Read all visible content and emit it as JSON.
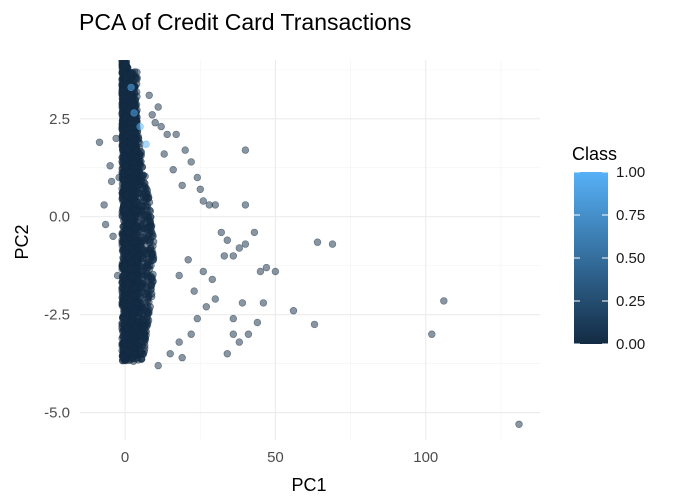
{
  "chart_data": {
    "type": "scatter",
    "title": "PCA of Credit Card Transactions",
    "xlabel": "PC1",
    "ylabel": "PC2",
    "xlim": [
      -15,
      138
    ],
    "ylim": [
      -5.7,
      4.0
    ],
    "x_ticks": [
      0,
      50,
      100
    ],
    "y_ticks": [
      -5.0,
      -2.5,
      0.0,
      2.5
    ],
    "x_tick_labels": [
      "0",
      "50",
      "100"
    ],
    "y_tick_labels": [
      "-5.0",
      "-2.5",
      "0.0",
      "2.5"
    ],
    "x_minor_ticks": [
      -25,
      25,
      75,
      125
    ],
    "y_minor_ticks": [
      -3.75,
      -1.25,
      1.25,
      3.75
    ],
    "grid": true,
    "theme": "minimal",
    "legend": {
      "title": "Class",
      "placement": "right",
      "type": "colorbar",
      "range": [
        0,
        1
      ],
      "breaks": [
        "1.00",
        "0.75",
        "0.50",
        "0.25",
        "0.00"
      ],
      "break_values": [
        1.0,
        0.75,
        0.5,
        0.25,
        0.0
      ],
      "low_color": "#132B43",
      "high_color": "#56B1F7"
    },
    "point_opacity": 0.5,
    "dense_cluster": {
      "note_free": true,
      "x_range": [
        0,
        8
      ],
      "y_range": [
        -3.7,
        4.0
      ],
      "class": 0
    },
    "points": [
      {
        "x": -8.5,
        "y": 1.9,
        "class": 0
      },
      {
        "x": -7,
        "y": 0.3,
        "class": 0
      },
      {
        "x": -6.5,
        "y": -0.2,
        "class": 0
      },
      {
        "x": -5,
        "y": 1.3,
        "class": 0
      },
      {
        "x": -4.5,
        "y": 0.9,
        "class": 0
      },
      {
        "x": -4,
        "y": -0.5,
        "class": 0
      },
      {
        "x": -3,
        "y": 2.0,
        "class": 0
      },
      {
        "x": -2.5,
        "y": -1.5,
        "class": 0
      },
      {
        "x": -2,
        "y": 1.0,
        "class": 0
      },
      {
        "x": 8,
        "y": 3.1,
        "class": 0
      },
      {
        "x": 10,
        "y": 2.4,
        "class": 0
      },
      {
        "x": 12,
        "y": 2.3,
        "class": 0
      },
      {
        "x": 14,
        "y": 2.1,
        "class": 0
      },
      {
        "x": 17,
        "y": 2.1,
        "class": 0
      },
      {
        "x": 20,
        "y": 1.7,
        "class": 0
      },
      {
        "x": 22,
        "y": 1.4,
        "class": 0
      },
      {
        "x": 24,
        "y": 1.0,
        "class": 0
      },
      {
        "x": 25,
        "y": 0.7,
        "class": 0
      },
      {
        "x": 26,
        "y": 0.4,
        "class": 0
      },
      {
        "x": 28,
        "y": 0.3,
        "class": 0
      },
      {
        "x": 30,
        "y": 0.3,
        "class": 0
      },
      {
        "x": 32,
        "y": -0.4,
        "class": 0
      },
      {
        "x": 33,
        "y": -1.0,
        "class": 0
      },
      {
        "x": 34,
        "y": -0.6,
        "class": 0
      },
      {
        "x": 36,
        "y": -1.0,
        "class": 0
      },
      {
        "x": 38,
        "y": -0.8,
        "class": 0
      },
      {
        "x": 40,
        "y": 1.7,
        "class": 0
      },
      {
        "x": 40,
        "y": -0.7,
        "class": 0
      },
      {
        "x": 40,
        "y": 0.3,
        "class": 0
      },
      {
        "x": 43,
        "y": -0.4,
        "class": 0
      },
      {
        "x": 45,
        "y": -1.4,
        "class": 0
      },
      {
        "x": 47,
        "y": -1.3,
        "class": 0
      },
      {
        "x": 50,
        "y": -1.4,
        "class": 0
      },
      {
        "x": 64,
        "y": -0.65,
        "class": 0
      },
      {
        "x": 69,
        "y": -0.7,
        "class": 0
      },
      {
        "x": 46,
        "y": -2.2,
        "class": 0
      },
      {
        "x": 39,
        "y": -2.2,
        "class": 0
      },
      {
        "x": 36,
        "y": -2.6,
        "class": 0
      },
      {
        "x": 36,
        "y": -3.0,
        "class": 0
      },
      {
        "x": 34,
        "y": -3.5,
        "class": 0
      },
      {
        "x": 38,
        "y": -3.2,
        "class": 0
      },
      {
        "x": 41,
        "y": -3.0,
        "class": 0
      },
      {
        "x": 44,
        "y": -2.7,
        "class": 0
      },
      {
        "x": 56,
        "y": -2.4,
        "class": 0
      },
      {
        "x": 63,
        "y": -2.75,
        "class": 0
      },
      {
        "x": 30,
        "y": -2.1,
        "class": 0
      },
      {
        "x": 27,
        "y": -2.3,
        "class": 0
      },
      {
        "x": 24,
        "y": -2.6,
        "class": 0
      },
      {
        "x": 22,
        "y": -3.0,
        "class": 0
      },
      {
        "x": 18,
        "y": -3.2,
        "class": 0
      },
      {
        "x": 15,
        "y": -3.5,
        "class": 0
      },
      {
        "x": 11,
        "y": -3.8,
        "class": 0
      },
      {
        "x": 19,
        "y": -3.6,
        "class": 0
      },
      {
        "x": 106,
        "y": -2.15,
        "class": 0
      },
      {
        "x": 102,
        "y": -3.0,
        "class": 0
      },
      {
        "x": 131,
        "y": -5.3,
        "class": 0
      },
      {
        "x": 18,
        "y": -1.5,
        "class": 0
      },
      {
        "x": 21,
        "y": -1.1,
        "class": 0
      },
      {
        "x": 23,
        "y": -1.9,
        "class": 0
      },
      {
        "x": 26,
        "y": -1.4,
        "class": 0
      },
      {
        "x": 29,
        "y": -1.6,
        "class": 0
      },
      {
        "x": 16,
        "y": 1.2,
        "class": 0
      },
      {
        "x": 19,
        "y": 0.8,
        "class": 0
      },
      {
        "x": 13,
        "y": 1.6,
        "class": 0
      },
      {
        "x": 11,
        "y": 2.8,
        "class": 0
      },
      {
        "x": 9,
        "y": 2.6,
        "class": 0
      },
      {
        "x": 3,
        "y": 2.65,
        "class": 1
      },
      {
        "x": 7,
        "y": 1.85,
        "class": 1
      },
      {
        "x": 5,
        "y": 2.3,
        "class": 1
      },
      {
        "x": 2,
        "y": 3.3,
        "class": 1
      }
    ]
  }
}
